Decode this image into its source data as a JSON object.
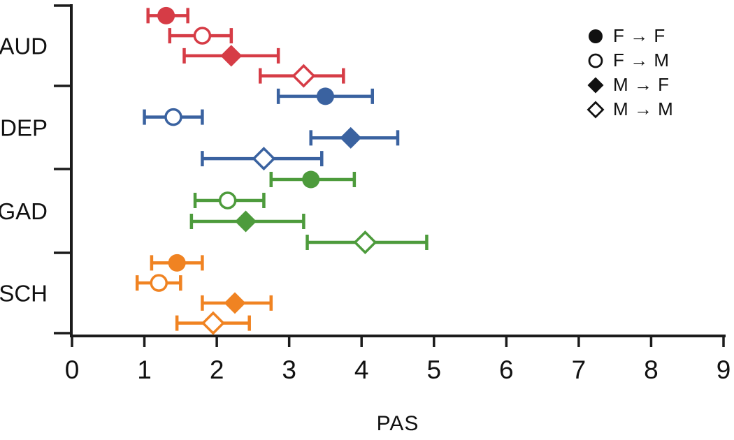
{
  "figure": {
    "background": "#ffffff",
    "axis_color": "#1b1b1b"
  },
  "chart_data": {
    "type": "scatter",
    "subtype": "forest-plot-with-error-bars",
    "title": "",
    "xlabel": "PAS",
    "ylabel": "",
    "xlim": [
      0,
      9
    ],
    "xticks": [
      0,
      1,
      2,
      3,
      4,
      5,
      6,
      7,
      8,
      9
    ],
    "grid": false,
    "groups": [
      {
        "label": "AUD",
        "color": "#d63c46",
        "points": [
          {
            "series": "F → F",
            "value": 1.3,
            "lo": 1.05,
            "hi": 1.6
          },
          {
            "series": "F → M",
            "value": 1.8,
            "lo": 1.35,
            "hi": 2.2
          },
          {
            "series": "M → F",
            "value": 2.2,
            "lo": 1.55,
            "hi": 2.85
          },
          {
            "series": "M → M",
            "value": 3.2,
            "lo": 2.6,
            "hi": 3.75
          }
        ]
      },
      {
        "label": "DEP",
        "color": "#3a62a0",
        "points": [
          {
            "series": "F → F",
            "value": 3.5,
            "lo": 2.85,
            "hi": 4.15
          },
          {
            "series": "F → M",
            "value": 1.4,
            "lo": 1.0,
            "hi": 1.8
          },
          {
            "series": "M → F",
            "value": 3.85,
            "lo": 3.3,
            "hi": 4.5
          },
          {
            "series": "M → M",
            "value": 2.65,
            "lo": 1.8,
            "hi": 3.45
          }
        ]
      },
      {
        "label": "GAD",
        "color": "#4d9b3c",
        "points": [
          {
            "series": "F → F",
            "value": 3.3,
            "lo": 2.75,
            "hi": 3.9
          },
          {
            "series": "F → M",
            "value": 2.15,
            "lo": 1.7,
            "hi": 2.65
          },
          {
            "series": "M → F",
            "value": 2.4,
            "lo": 1.65,
            "hi": 3.2
          },
          {
            "series": "M → M",
            "value": 4.05,
            "lo": 3.25,
            "hi": 4.9
          }
        ]
      },
      {
        "label": "SCH",
        "color": "#f08322",
        "points": [
          {
            "series": "F → F",
            "value": 1.45,
            "lo": 1.1,
            "hi": 1.8
          },
          {
            "series": "F → M",
            "value": 1.2,
            "lo": 0.9,
            "hi": 1.5
          },
          {
            "series": "M → F",
            "value": 2.25,
            "lo": 1.8,
            "hi": 2.75
          },
          {
            "series": "M → M",
            "value": 1.95,
            "lo": 1.45,
            "hi": 2.45
          }
        ]
      }
    ],
    "legend": {
      "position": "top-right",
      "symbol_color": "#111111",
      "items": [
        {
          "symbol": "circle-filled",
          "label": "F → F"
        },
        {
          "symbol": "circle-open",
          "label": "F → M"
        },
        {
          "symbol": "diamond-filled",
          "label": "M → F"
        },
        {
          "symbol": "diamond-open",
          "label": "M → M"
        }
      ]
    }
  }
}
